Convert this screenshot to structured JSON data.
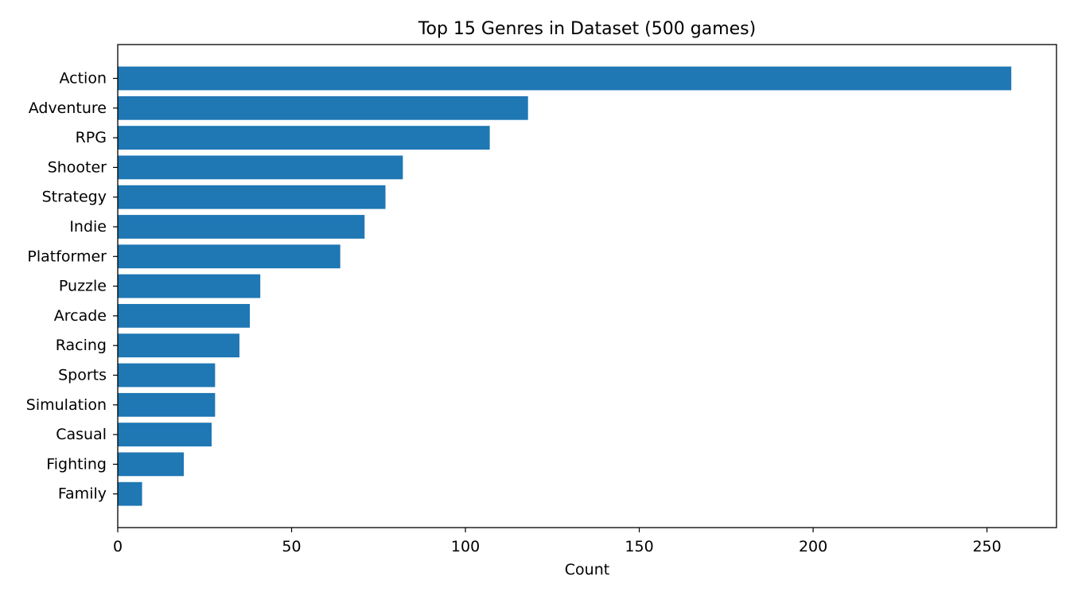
{
  "chart_data": {
    "type": "bar",
    "orientation": "horizontal",
    "title": "Top 15 Genres in Dataset (500 games)",
    "xlabel": "Count",
    "ylabel": "",
    "categories": [
      "Action",
      "Adventure",
      "RPG",
      "Shooter",
      "Strategy",
      "Indie",
      "Platformer",
      "Puzzle",
      "Arcade",
      "Racing",
      "Sports",
      "Simulation",
      "Casual",
      "Fighting",
      "Family"
    ],
    "values": [
      257,
      118,
      107,
      82,
      77,
      71,
      64,
      41,
      38,
      35,
      28,
      28,
      27,
      19,
      7
    ],
    "xlim": [
      0,
      270
    ],
    "xticks": [
      0,
      50,
      100,
      150,
      200,
      250
    ],
    "bar_color": "#1f77b4",
    "grid": false,
    "legend": "none"
  }
}
